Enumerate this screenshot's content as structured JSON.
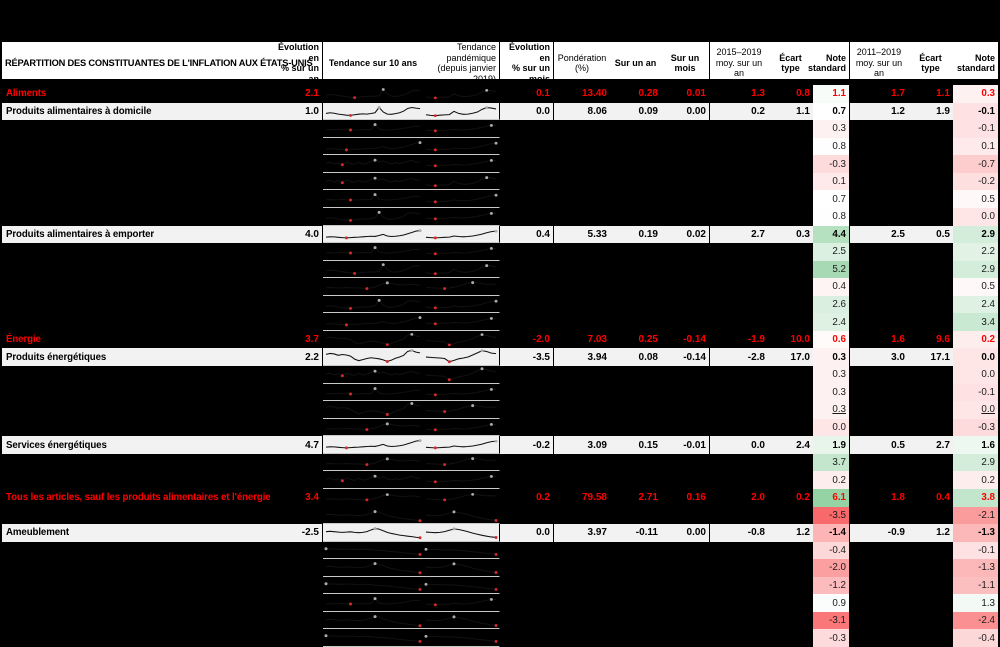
{
  "chart_data": {
    "type": "table",
    "title": "RÉPARTITION DES CONSTITUANTES DE L'INFLATION AUX ÉTATS-UNIS",
    "columns": {
      "title": "RÉPARTITION DES CONSTITUANTES DE L'INFLATION AUX ÉTATS-UNIS",
      "evol_an": "Évolution en\n% sur un an",
      "trend10": "Tendance sur 10 ans",
      "trend_pand": "Tendance pandémique\n(depuis janvier 2019)",
      "evol_mois": "Évolution en\n% sur un mois",
      "pond": "Pondération\n(%)",
      "sur_an": "Sur un an",
      "sur_mois": "Sur un mois",
      "moy_1519": "2015–2019\nmoy. sur un an",
      "ecart1": "Écart type",
      "note1": "Note\nstandard",
      "moy_1119": "2011–2019\nmoy. sur un an",
      "ecart2": "Écart type",
      "note2": "Note\nstandard"
    },
    "legend": "sparkline red dot = minimum, grey dot = maximum; note standard cells use red-white-green heatmap",
    "heatmap": {
      "red_end": "#f8696b",
      "green_end": "#63be7b",
      "midpoint": 0.7,
      "red_span": 4.2,
      "green_span": 5.4,
      "green_cap": 0.68
    },
    "accent_red": "#ff0000",
    "row_bg_light": "#f2f2f2",
    "spark_shapes": {
      "A": [
        4,
        4.5,
        4.2,
        3.8,
        3.2,
        2.8,
        2.3,
        2.0,
        2.4,
        2.8,
        3.0,
        3.2,
        3.1,
        3.5,
        8.5,
        5.0,
        3.2,
        3.0,
        3.4,
        4.2,
        5.5,
        7.0,
        7.8,
        7.5
      ],
      "B": [
        2.5,
        2.0,
        1.8,
        2.2,
        2.4,
        2.6,
        5.0,
        3.5,
        2.8,
        3.0,
        3.6,
        4.5,
        6.5,
        7.8,
        7.5,
        6.8
      ],
      "C": [
        3.5,
        4.0,
        3.6,
        3.0,
        2.6,
        2.2,
        2.0,
        2.5,
        2.9,
        3.1,
        3.0,
        3.4,
        4.0,
        8.0,
        4.6,
        3.0,
        2.8,
        3.3,
        4.0,
        5.2,
        7.2,
        7.9,
        7.4,
        7.0
      ],
      "D": [
        3.0,
        3.2,
        3.1,
        2.8,
        2.6,
        2.4,
        2.6,
        2.8,
        3.0,
        3.2,
        3.4,
        3.6,
        3.5,
        4.2,
        5.0,
        3.8,
        3.4,
        3.6,
        4.0,
        4.6,
        5.4,
        6.4,
        7.4,
        7.8
      ],
      "E": [
        2.8,
        2.6,
        2.4,
        2.6,
        2.8,
        3.0,
        3.8,
        3.4,
        3.2,
        3.4,
        3.8,
        4.4,
        5.2,
        6.2,
        7.0,
        7.4
      ],
      "F": [
        6.5,
        7.2,
        6.8,
        5.8,
        6.4,
        6.0,
        5.2,
        3.0,
        1.8,
        2.6,
        3.4,
        4.0,
        3.6,
        3.2,
        2.4,
        1.2,
        2.2,
        3.6,
        4.6,
        5.8,
        8.8,
        9.4,
        8.2,
        7.6
      ],
      "G": [
        4.5,
        4.3,
        4.0,
        3.8,
        3.4,
        1.0,
        2.0,
        3.2,
        3.8,
        4.6,
        6.0,
        7.6,
        9.2,
        8.6,
        7.4,
        7.0
      ],
      "H": [
        4.0,
        4.1,
        4.0,
        3.9,
        4.0,
        4.1,
        4.0,
        3.9,
        3.8,
        3.6,
        3.4,
        4.0,
        4.6,
        5.6,
        7.0,
        7.6,
        7.2,
        6.6,
        6.2,
        6.0,
        6.4,
        6.6,
        6.2,
        5.8
      ],
      "I": [
        4.2,
        4.0,
        3.8,
        3.6,
        3.4,
        3.8,
        4.4,
        5.2,
        6.4,
        7.4,
        7.8,
        7.6,
        7.0,
        6.6,
        6.8,
        6.4
      ],
      "J": [
        5.5,
        5.8,
        5.5,
        5.2,
        5.0,
        5.2,
        5.4,
        5.0,
        4.8,
        5.0,
        5.6,
        6.8,
        7.8,
        7.4,
        6.2,
        5.0,
        4.2,
        3.6,
        3.0,
        2.6,
        2.2,
        1.8,
        1.4,
        1.0
      ],
      "K": [
        5.2,
        5.0,
        4.8,
        5.0,
        5.6,
        6.6,
        7.6,
        7.2,
        6.4,
        5.4,
        4.4,
        3.6,
        2.8,
        2.2,
        1.6,
        1.2
      ],
      "L": [
        5.0,
        6.0,
        4.5,
        5.5,
        4.0,
        6.0,
        5.0,
        4.2,
        5.8,
        4.4,
        5.2,
        6.4,
        7.4,
        6.0,
        6.8,
        5.4,
        4.6,
        5.6,
        4.8,
        5.8,
        6.6,
        7.2,
        6.2,
        5.6
      ],
      "M": [
        4.0,
        4.1,
        3.9,
        4.0,
        4.2,
        4.0,
        3.8,
        3.9,
        4.0,
        4.1,
        4.0,
        4.2,
        7.8,
        4.6,
        4.0,
        3.8,
        4.0,
        4.3,
        4.6,
        5.0,
        5.6,
        6.2,
        6.6,
        6.4
      ],
      "N": [
        3.6,
        3.4,
        3.2,
        3.4,
        3.6,
        3.8,
        4.2,
        4.0,
        3.8,
        4.0,
        4.4,
        5.0,
        5.8,
        6.6,
        7.2,
        7.0
      ],
      "P": [
        6.2,
        6.0,
        6.1,
        5.9,
        5.8,
        5.9,
        6.0,
        5.8,
        5.6,
        5.7,
        5.8,
        5.5,
        5.2,
        5.0,
        4.8,
        4.5,
        4.2,
        3.9,
        3.6,
        3.2,
        2.9,
        2.6,
        2.3,
        2.0
      ],
      "Q": [
        5.8,
        5.6,
        5.7,
        5.5,
        5.3,
        5.4,
        5.2,
        5.0,
        4.8,
        4.4,
        4.0,
        3.6,
        3.2,
        2.8,
        2.4,
        2.0
      ]
    },
    "rows": [
      {
        "type": "agg",
        "label": "Aliments",
        "evol_an": "2.1",
        "s10": "A",
        "sp": "B",
        "mid": [
          "0.1",
          "13.40",
          "0.28",
          "0.01",
          "1.3",
          "0.8"
        ],
        "note1": "1.1",
        "right": [
          "1.7",
          "1.1"
        ],
        "note2": "0.3"
      },
      {
        "type": "light",
        "label": "Produits alimentaires à domicile",
        "evol_an": "1.0",
        "s10": "C",
        "sp": "B",
        "mid": [
          "0.0",
          "8.06",
          "0.09",
          "0.00",
          "0.2",
          "1.1"
        ],
        "note1": "0.7",
        "right": [
          "1.2",
          "1.9"
        ],
        "note2": "-0.1"
      },
      {
        "type": "dark",
        "s10": "M",
        "sp": "N",
        "note1": "0.3",
        "note2": "-0.1"
      },
      {
        "type": "dark",
        "s10": "D",
        "sp": "E",
        "note1": "0.8",
        "note2": "0.1"
      },
      {
        "type": "dark",
        "s10": "L",
        "sp": "N",
        "note1": "-0.3",
        "note2": "-0.7"
      },
      {
        "type": "dark",
        "s10": "L",
        "sp": "B",
        "note1": "0.1",
        "note2": "-0.2"
      },
      {
        "type": "dark",
        "s10": "M",
        "sp": "E",
        "note1": "0.7",
        "note2": "0.5"
      },
      {
        "type": "dark",
        "s10": "C",
        "sp": "N",
        "note1": "0.8",
        "note2": "0.0"
      },
      {
        "type": "light",
        "label": "Produits alimentaires à emporter",
        "evol_an": "4.0",
        "s10": "D",
        "sp": "E",
        "mid": [
          "0.4",
          "5.33",
          "0.19",
          "0.02",
          "2.7",
          "0.3"
        ],
        "note1": "4.4",
        "right": [
          "2.5",
          "0.5"
        ],
        "note2": "2.9"
      },
      {
        "type": "dark",
        "s10": "M",
        "sp": "N",
        "note1": "2.5",
        "note2": "2.2"
      },
      {
        "type": "dark",
        "s10": "A",
        "sp": "B",
        "note1": "5.2",
        "note2": "2.9"
      },
      {
        "type": "dark",
        "s10": "H",
        "sp": "I",
        "note1": "0.4",
        "note2": "0.5"
      },
      {
        "type": "dark",
        "s10": "C",
        "sp": "E",
        "note1": "2.6",
        "note2": "2.4"
      },
      {
        "type": "dark",
        "s10": "D",
        "sp": "N",
        "note1": "2.4",
        "note2": "3.4"
      },
      {
        "type": "agg",
        "label": "Énergie",
        "evol_an": "3.7",
        "s10": "F",
        "sp": "G",
        "mid": [
          "-2.0",
          "7.03",
          "0.25",
          "-0.14",
          "-1.9",
          "10.0"
        ],
        "note1": "0.6",
        "right": [
          "1.6",
          "9.6"
        ],
        "note2": "0.2"
      },
      {
        "type": "light",
        "label": "Produits énergétiques",
        "evol_an": "2.2",
        "s10": "F",
        "sp": "G",
        "mid": [
          "-3.5",
          "3.94",
          "0.08",
          "-0.14",
          "-2.8",
          "17.0"
        ],
        "note1": "0.3",
        "right": [
          "3.0",
          "17.1"
        ],
        "note2": "0.0"
      },
      {
        "type": "dark",
        "s10": "L",
        "sp": "G",
        "note1": "0.3",
        "note2": "0.0"
      },
      {
        "type": "dark",
        "s10": "M",
        "sp": "N",
        "note1": "0.3",
        "note2": "-0.1"
      },
      {
        "type": "dark",
        "s10": "F",
        "sp": "I",
        "note1": "0.3",
        "note2": "0.0",
        "underline": true
      },
      {
        "type": "dark",
        "s10": "H",
        "sp": "N",
        "note1": "0.0",
        "note2": "-0.3"
      },
      {
        "type": "light",
        "label": "Services énergétiques",
        "evol_an": "4.7",
        "s10": "D",
        "sp": "E",
        "mid": [
          "-0.2",
          "3.09",
          "0.15",
          "-0.01",
          "0.0",
          "2.4"
        ],
        "note1": "1.9",
        "right": [
          "0.5",
          "2.7"
        ],
        "note2": "1.6"
      },
      {
        "type": "dark",
        "s10": "H",
        "sp": "I",
        "note1": "3.7",
        "note2": "2.9"
      },
      {
        "type": "dark",
        "s10": "L",
        "sp": "N",
        "note1": "0.2",
        "note2": "0.2"
      },
      {
        "type": "agg",
        "label": "Tous les articles, sauf les produits alimentaires et l'énergie",
        "evol_an": "3.4",
        "s10": "H",
        "sp": "I",
        "mid": [
          "0.2",
          "79.58",
          "2.71",
          "0.16",
          "2.0",
          "0.2"
        ],
        "note1": "6.1",
        "right": [
          "1.8",
          "0.4"
        ],
        "note2": "3.8"
      },
      {
        "type": "dark",
        "s10": "J",
        "sp": "K",
        "note1": "-3.5",
        "note2": "-2.1"
      },
      {
        "type": "light",
        "label": "Ameublement",
        "evol_an": "-2.5",
        "s10": "J",
        "sp": "K",
        "mid": [
          "0.0",
          "3.97",
          "-0.11",
          "0.00",
          "-0.8",
          "1.2"
        ],
        "note1": "-1.4",
        "right": [
          "-0.9",
          "1.2"
        ],
        "note2": "-1.3"
      },
      {
        "type": "dark",
        "s10": "P",
        "sp": "Q",
        "note1": "-0.4",
        "note2": "-0.1"
      },
      {
        "type": "dark",
        "s10": "J",
        "sp": "K",
        "note1": "-2.0",
        "note2": "-1.3"
      },
      {
        "type": "dark",
        "s10": "P",
        "sp": "Q",
        "note1": "-1.2",
        "note2": "-1.1"
      },
      {
        "type": "dark",
        "s10": "M",
        "sp": "N",
        "note1": "0.9",
        "note2": "1.3"
      },
      {
        "type": "dark",
        "s10": "J",
        "sp": "K",
        "note1": "-3.1",
        "note2": "-2.4"
      },
      {
        "type": "dark",
        "s10": "P",
        "sp": "Q",
        "note1": "-0.3",
        "note2": "-0.4"
      }
    ]
  }
}
